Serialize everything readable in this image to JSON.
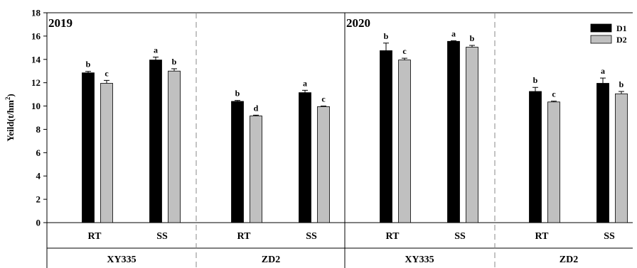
{
  "chart_data": {
    "type": "bar",
    "ylabel": "Yeild(t/hm",
    "ylabel_sup": "2",
    "ylabel_close": ")",
    "ylim": [
      0,
      18
    ],
    "yticks": [
      "0",
      "2",
      "4",
      "6",
      "8",
      "10",
      "12",
      "14",
      "16",
      "18"
    ],
    "grid": false,
    "legend_position": "top-right",
    "series_names": [
      "D1",
      "D2"
    ],
    "colors": {
      "D1": "#000000",
      "D2": "#c0c0c0"
    },
    "panels": [
      {
        "year": "2019",
        "groups": [
          {
            "variety": "XY335",
            "bars": [
              {
                "treatment": "RT",
                "D1": 12.85,
                "D2": 11.95,
                "err_D1": 0.12,
                "err_D2": 0.25,
                "sig_D1": "b",
                "sig_D2": "c"
              },
              {
                "treatment": "SS",
                "D1": 13.95,
                "D2": 13.0,
                "err_D1": 0.25,
                "err_D2": 0.2,
                "sig_D1": "a",
                "sig_D2": "b"
              }
            ]
          },
          {
            "variety": "ZD2",
            "bars": [
              {
                "treatment": "RT",
                "D1": 10.4,
                "D2": 9.15,
                "err_D1": 0.08,
                "err_D2": 0.07,
                "sig_D1": "b",
                "sig_D2": "d"
              },
              {
                "treatment": "SS",
                "D1": 11.15,
                "D2": 9.95,
                "err_D1": 0.2,
                "err_D2": 0.05,
                "sig_D1": "a",
                "sig_D2": "c"
              }
            ]
          }
        ]
      },
      {
        "year": "2020",
        "groups": [
          {
            "variety": "XY335",
            "bars": [
              {
                "treatment": "RT",
                "D1": 14.75,
                "D2": 13.95,
                "err_D1": 0.65,
                "err_D2": 0.15,
                "sig_D1": "b",
                "sig_D2": "c"
              },
              {
                "treatment": "SS",
                "D1": 15.55,
                "D2": 15.05,
                "err_D1": 0.05,
                "err_D2": 0.15,
                "sig_D1": "a",
                "sig_D2": "b"
              }
            ]
          },
          {
            "variety": "ZD2",
            "bars": [
              {
                "treatment": "RT",
                "D1": 11.25,
                "D2": 10.35,
                "err_D1": 0.35,
                "err_D2": 0.07,
                "sig_D1": "b",
                "sig_D2": "c"
              },
              {
                "treatment": "SS",
                "D1": 11.95,
                "D2": 11.05,
                "err_D1": 0.45,
                "err_D2": 0.2,
                "sig_D1": "a",
                "sig_D2": "b"
              }
            ]
          }
        ]
      }
    ]
  }
}
